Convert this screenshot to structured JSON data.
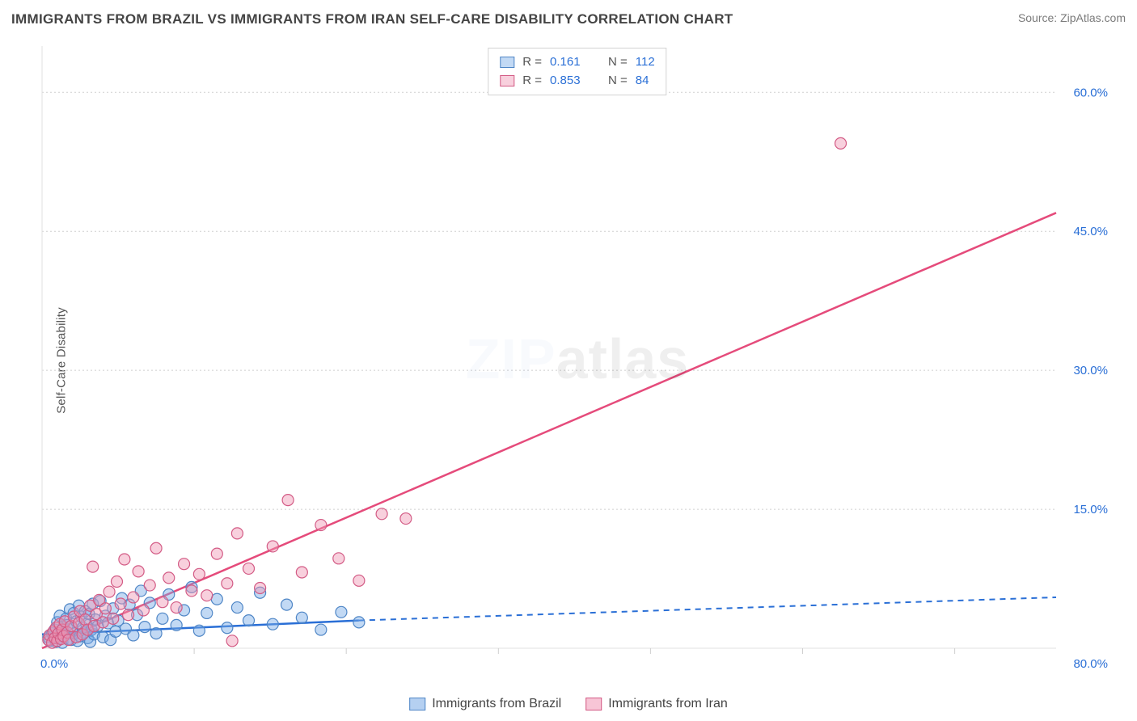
{
  "title": "IMMIGRANTS FROM BRAZIL VS IMMIGRANTS FROM IRAN SELF-CARE DISABILITY CORRELATION CHART",
  "source_label": "Source: ZipAtlas.com",
  "y_axis_label": "Self-Care Disability",
  "watermark": {
    "part1": "ZIP",
    "part2": "atlas"
  },
  "chart": {
    "type": "scatter",
    "background": "#ffffff",
    "grid_color": "#cfcfcf",
    "axis_color": "#e2e2e2",
    "xlim": [
      0,
      80
    ],
    "ylim": [
      0,
      65
    ],
    "x_origin_label": "0.0%",
    "x_max_label": "80.0%",
    "y_ticks": [
      15,
      30,
      45,
      60
    ],
    "y_tick_labels": [
      "15.0%",
      "30.0%",
      "45.0%",
      "60.0%"
    ],
    "x_minor_ticks": [
      12,
      24,
      36,
      48,
      60,
      72
    ],
    "series": [
      {
        "name": "Immigrants from Brazil",
        "fill": "rgba(120,170,230,0.45)",
        "stroke": "#4f86c6",
        "trend_color": "#2a6fd6",
        "R": "0.161",
        "N": "112",
        "trend": {
          "x1": 0,
          "y1": 1.5,
          "x2": 25,
          "y2": 3.0,
          "ext_x": 80,
          "ext_y": 5.5
        },
        "points": [
          [
            0.5,
            1.2
          ],
          [
            0.6,
            0.8
          ],
          [
            0.8,
            1.6
          ],
          [
            1.0,
            2.0
          ],
          [
            1.1,
            0.7
          ],
          [
            1.2,
            2.8
          ],
          [
            1.3,
            1.1
          ],
          [
            1.4,
            3.5
          ],
          [
            1.5,
            1.9
          ],
          [
            1.6,
            0.6
          ],
          [
            1.7,
            2.3
          ],
          [
            1.8,
            1.4
          ],
          [
            1.9,
            3.2
          ],
          [
            2.0,
            2.5
          ],
          [
            2.1,
            1.0
          ],
          [
            2.2,
            4.2
          ],
          [
            2.3,
            0.9
          ],
          [
            2.4,
            2.1
          ],
          [
            2.5,
            3.8
          ],
          [
            2.6,
            1.6
          ],
          [
            2.7,
            2.9
          ],
          [
            2.8,
            0.8
          ],
          [
            2.9,
            4.6
          ],
          [
            3.0,
            1.3
          ],
          [
            3.1,
            3.4
          ],
          [
            3.2,
            2.2
          ],
          [
            3.3,
            1.7
          ],
          [
            3.4,
            4.0
          ],
          [
            3.5,
            2.6
          ],
          [
            3.6,
            1.1
          ],
          [
            3.7,
            3.7
          ],
          [
            3.8,
            0.7
          ],
          [
            3.9,
            2.0
          ],
          [
            4.0,
            4.8
          ],
          [
            4.1,
            1.5
          ],
          [
            4.2,
            3.1
          ],
          [
            4.4,
            2.4
          ],
          [
            4.6,
            5.1
          ],
          [
            4.8,
            1.2
          ],
          [
            5.0,
            3.5
          ],
          [
            5.2,
            2.7
          ],
          [
            5.4,
            0.9
          ],
          [
            5.6,
            4.3
          ],
          [
            5.8,
            1.8
          ],
          [
            6.0,
            3.0
          ],
          [
            6.3,
            5.4
          ],
          [
            6.6,
            2.1
          ],
          [
            6.9,
            4.7
          ],
          [
            7.2,
            1.4
          ],
          [
            7.5,
            3.6
          ],
          [
            7.8,
            6.2
          ],
          [
            8.1,
            2.3
          ],
          [
            8.5,
            4.9
          ],
          [
            9.0,
            1.6
          ],
          [
            9.5,
            3.2
          ],
          [
            10.0,
            5.8
          ],
          [
            10.6,
            2.5
          ],
          [
            11.2,
            4.1
          ],
          [
            11.8,
            6.6
          ],
          [
            12.4,
            1.9
          ],
          [
            13.0,
            3.8
          ],
          [
            13.8,
            5.3
          ],
          [
            14.6,
            2.2
          ],
          [
            15.4,
            4.4
          ],
          [
            16.3,
            3.0
          ],
          [
            17.2,
            6.0
          ],
          [
            18.2,
            2.6
          ],
          [
            19.3,
            4.7
          ],
          [
            20.5,
            3.3
          ],
          [
            22.0,
            2.0
          ],
          [
            23.6,
            3.9
          ],
          [
            25.0,
            2.8
          ]
        ]
      },
      {
        "name": "Immigrants from Iran",
        "fill": "rgba(240,150,180,0.45)",
        "stroke": "#d35b85",
        "trend_color": "#e54b7b",
        "R": "0.853",
        "N": "84",
        "trend": {
          "x1": 0,
          "y1": 0,
          "x2": 80,
          "y2": 47
        },
        "points": [
          [
            0.5,
            0.9
          ],
          [
            0.6,
            1.4
          ],
          [
            0.8,
            0.6
          ],
          [
            0.9,
            1.8
          ],
          [
            1.0,
            1.1
          ],
          [
            1.1,
            2.2
          ],
          [
            1.2,
            0.8
          ],
          [
            1.3,
            1.6
          ],
          [
            1.4,
            2.6
          ],
          [
            1.5,
            1.0
          ],
          [
            1.6,
            2.0
          ],
          [
            1.7,
            1.3
          ],
          [
            1.8,
            2.9
          ],
          [
            2.0,
            1.7
          ],
          [
            2.1,
            0.9
          ],
          [
            2.3,
            2.4
          ],
          [
            2.5,
            3.4
          ],
          [
            2.7,
            1.2
          ],
          [
            2.9,
            2.7
          ],
          [
            3.0,
            4.0
          ],
          [
            3.2,
            1.5
          ],
          [
            3.4,
            3.1
          ],
          [
            3.6,
            2.0
          ],
          [
            3.8,
            4.6
          ],
          [
            4.0,
            8.8
          ],
          [
            4.1,
            2.4
          ],
          [
            4.3,
            3.7
          ],
          [
            4.5,
            5.2
          ],
          [
            4.8,
            2.8
          ],
          [
            5.0,
            4.3
          ],
          [
            5.3,
            6.1
          ],
          [
            5.6,
            3.2
          ],
          [
            5.9,
            7.2
          ],
          [
            6.2,
            4.8
          ],
          [
            6.5,
            9.6
          ],
          [
            6.8,
            3.6
          ],
          [
            7.2,
            5.5
          ],
          [
            7.6,
            8.3
          ],
          [
            8.0,
            4.1
          ],
          [
            8.5,
            6.8
          ],
          [
            9.0,
            10.8
          ],
          [
            9.5,
            5.0
          ],
          [
            10.0,
            7.6
          ],
          [
            10.6,
            4.4
          ],
          [
            11.2,
            9.1
          ],
          [
            11.8,
            6.2
          ],
          [
            12.4,
            8.0
          ],
          [
            13.0,
            5.7
          ],
          [
            13.8,
            10.2
          ],
          [
            14.6,
            7.0
          ],
          [
            15.4,
            12.4
          ],
          [
            16.3,
            8.6
          ],
          [
            17.2,
            6.5
          ],
          [
            18.2,
            11.0
          ],
          [
            19.4,
            16.0
          ],
          [
            20.5,
            8.2
          ],
          [
            22.0,
            13.3
          ],
          [
            23.4,
            9.7
          ],
          [
            25.0,
            7.3
          ],
          [
            26.8,
            14.5
          ],
          [
            28.7,
            14.0
          ],
          [
            15.0,
            0.8
          ],
          [
            63.0,
            54.5
          ]
        ]
      }
    ]
  },
  "legend_bottom": [
    {
      "label": "Immigrants from Brazil",
      "fill": "rgba(120,170,230,0.55)",
      "stroke": "#4f86c6"
    },
    {
      "label": "Immigrants from Iran",
      "fill": "rgba(240,150,180,0.55)",
      "stroke": "#d35b85"
    }
  ]
}
